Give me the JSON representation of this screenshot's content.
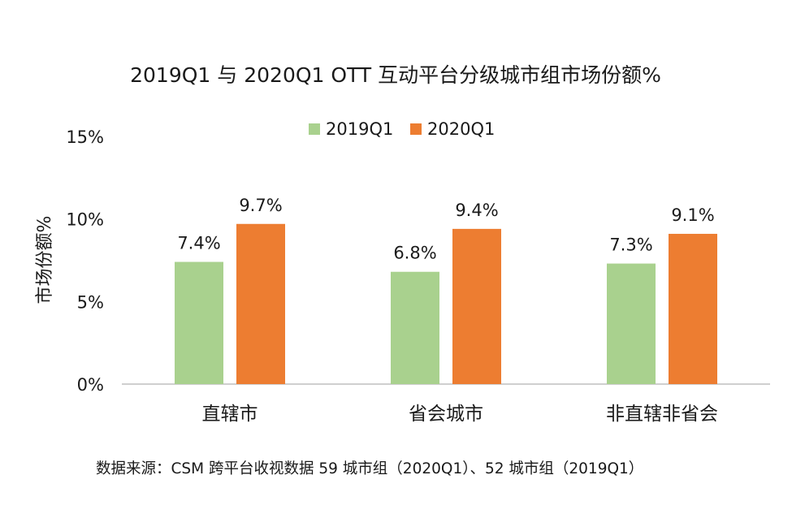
{
  "chart_data": {
    "type": "bar",
    "title": "2019Q1 与 2020Q1  OTT 互动平台分级城市组市场份额%",
    "ylabel": "市场份额%",
    "xlabel": "",
    "ylim": [
      0,
      15
    ],
    "y_ticks": [
      "0%",
      "5%",
      "10%",
      "15%"
    ],
    "y_tick_values": [
      0,
      5,
      10,
      15
    ],
    "categories": [
      "直辖市",
      "省会城市",
      "非直辖非省会"
    ],
    "series": [
      {
        "name": "2019Q1",
        "color": "#a9d18e",
        "values": [
          7.4,
          6.8,
          7.3
        ],
        "labels": [
          "7.4%",
          "6.8%",
          "7.3%"
        ]
      },
      {
        "name": "2020Q1",
        "color": "#ed7d31",
        "values": [
          9.7,
          9.4,
          9.1
        ],
        "labels": [
          "9.7%",
          "9.4%",
          "9.1%"
        ]
      }
    ],
    "legend_position": "top-center",
    "grid": false,
    "source": "数据来源：CSM 跨平台收视数据  59 城市组（2020Q1）、52 城市组（2019Q1）"
  }
}
